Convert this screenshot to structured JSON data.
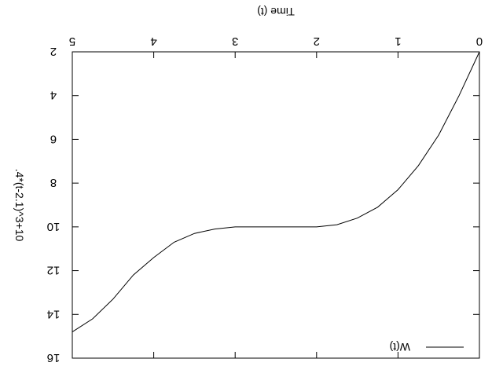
{
  "chart_data": {
    "type": "line",
    "title": "",
    "rendering": "mirrored horizontally and vertically (image rotated 180 degrees)",
    "xlabel": "Time (t)",
    "ylabel": ".4*(t-2.1)^3+10",
    "xlim": [
      0,
      5
    ],
    "ylim": [
      2,
      16
    ],
    "x_ticks": [
      0,
      1,
      2,
      3,
      4,
      5
    ],
    "y_ticks": [
      2,
      4,
      6,
      8,
      10,
      12,
      14,
      16
    ],
    "x_tick_labels": [
      "0",
      "1",
      "2",
      "3",
      "4",
      "5"
    ],
    "y_tick_labels": [
      "2",
      "4",
      "6",
      "8",
      "10",
      "12",
      "14",
      "16"
    ],
    "grid": false,
    "legend_position": "bottom-left",
    "series": [
      {
        "name": "W(t)",
        "color": "#000000",
        "x": [
          0,
          0.25,
          0.5,
          0.75,
          1,
          1.25,
          1.5,
          1.75,
          2,
          2.25,
          2.5,
          2.75,
          3,
          3.25,
          3.5,
          3.75,
          4,
          4.25,
          4.5,
          4.75,
          5
        ],
        "y": [
          2,
          4,
          5.8,
          7.2,
          8.3,
          9.1,
          9.6,
          9.9,
          10,
          10,
          10,
          10,
          10,
          10.1,
          10.3,
          10.7,
          11.4,
          12.2,
          13.3,
          14.2,
          14.8
        ]
      }
    ]
  }
}
